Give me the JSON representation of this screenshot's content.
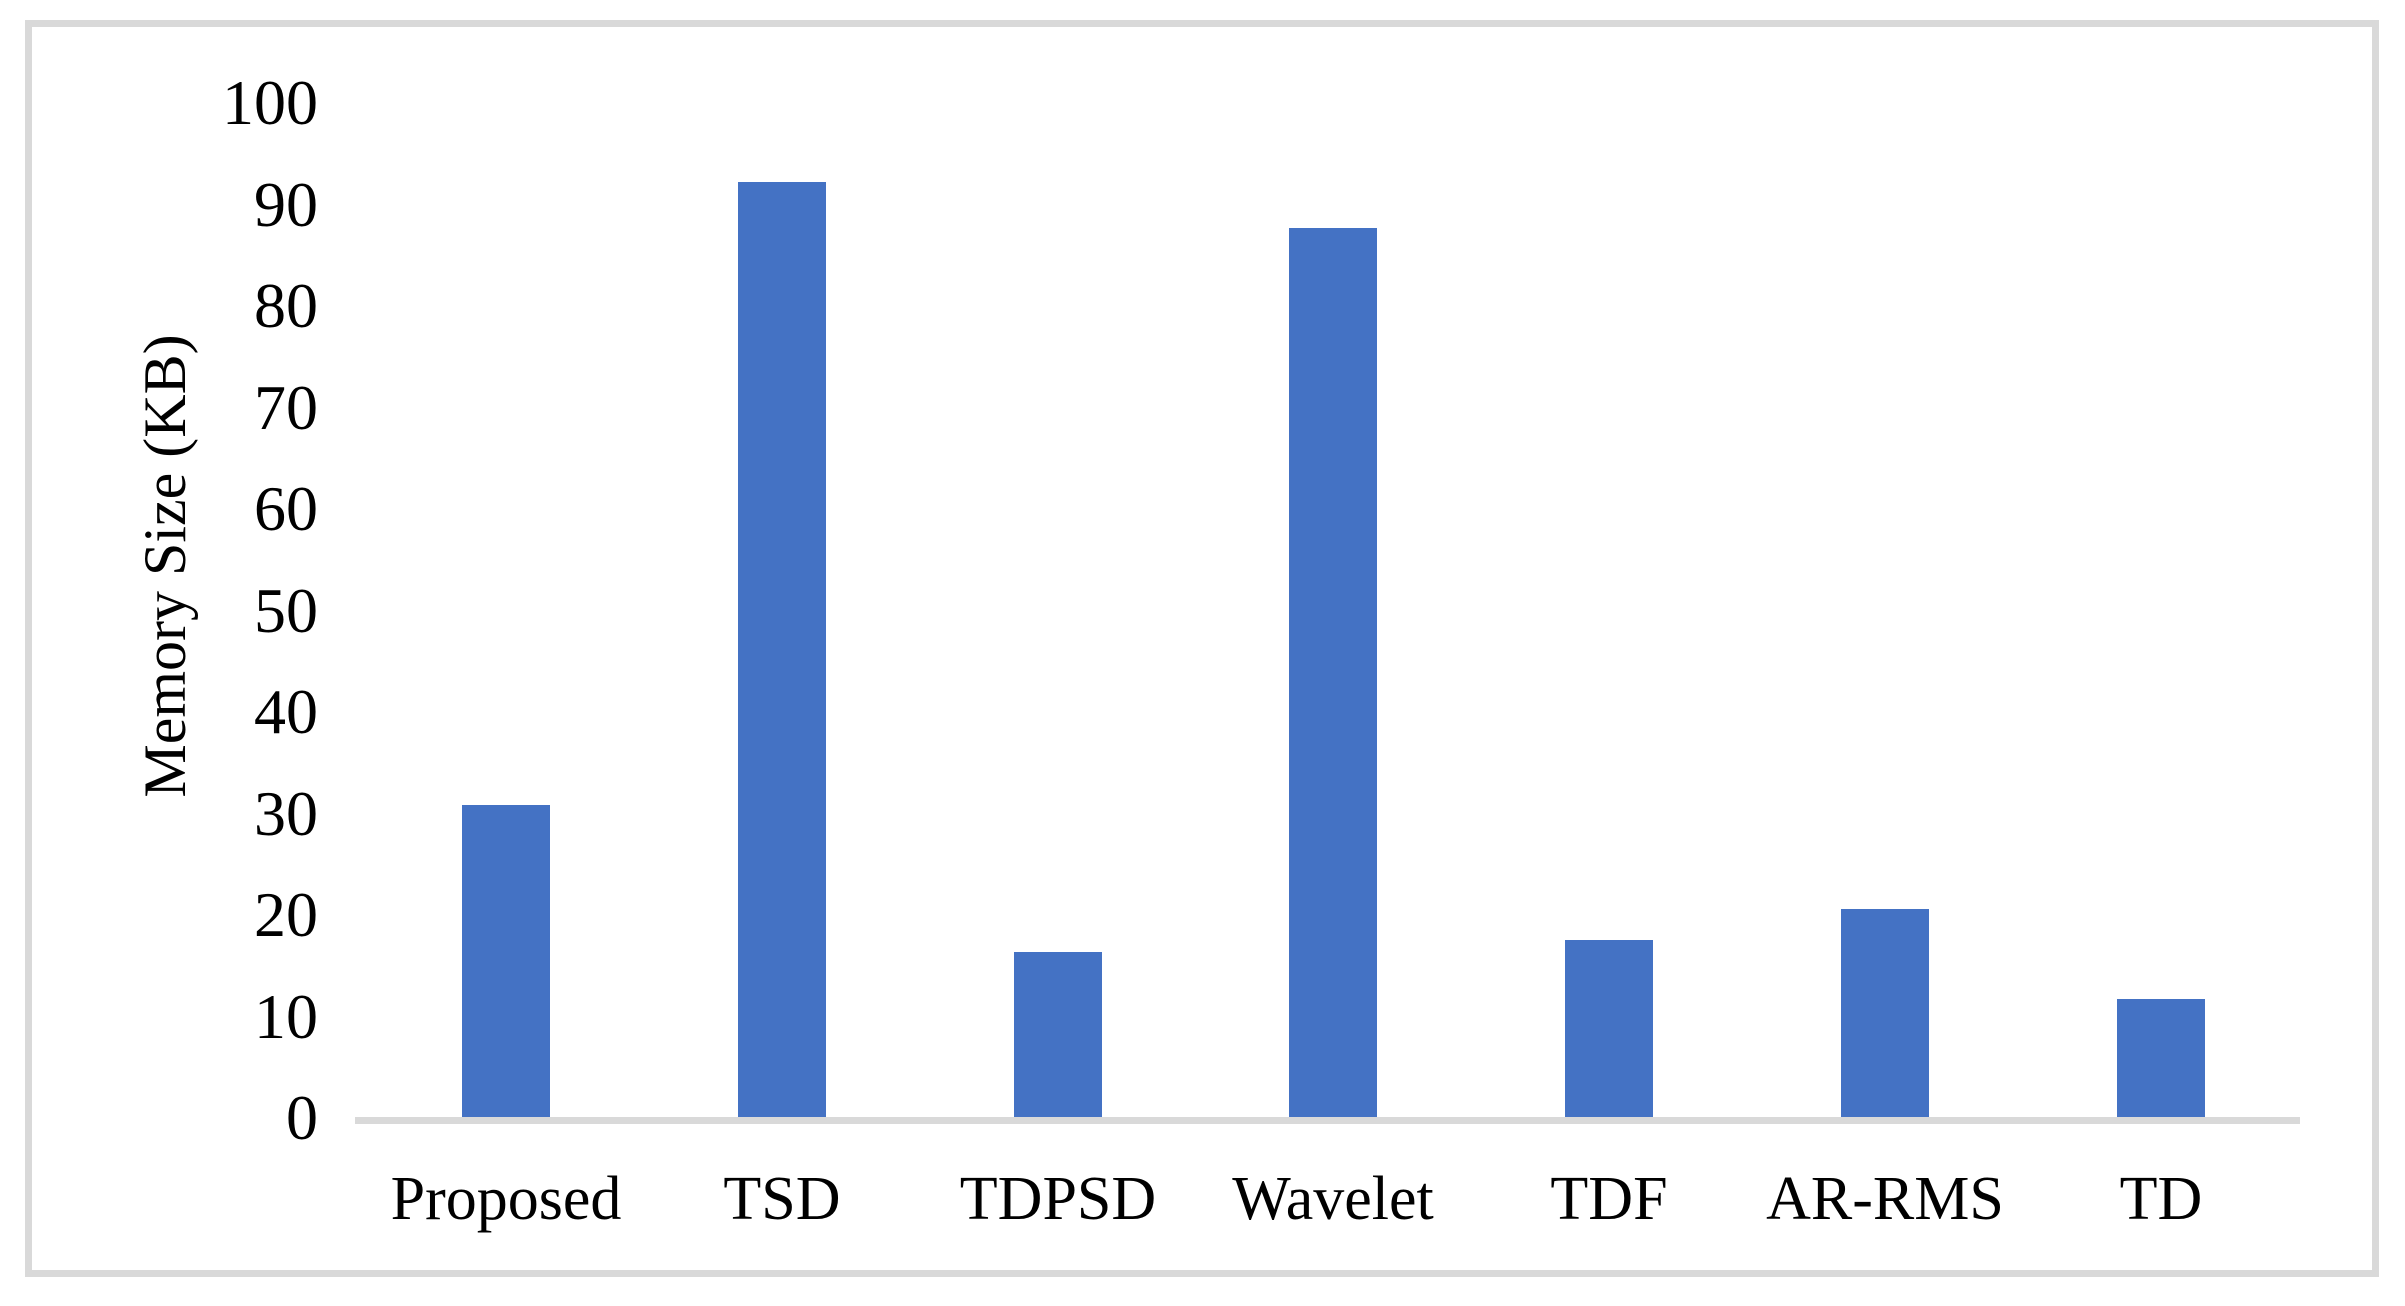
{
  "figure": {
    "background_color": "#ffffff",
    "border_color": "#d9d9d9",
    "text_color": "#000000"
  },
  "chart_data": {
    "type": "bar",
    "title": "",
    "xlabel": "",
    "ylabel": "Memory Size (KB)",
    "categories": [
      "Proposed",
      "TSD",
      "TDPSD",
      "Wavelet",
      "TDF",
      "AR-RMS",
      "TD"
    ],
    "series": [
      {
        "name": "Memory Size (KB)",
        "values": [
          30.7,
          92.1,
          16.3,
          87.6,
          17.4,
          20.5,
          11.6
        ]
      }
    ],
    "ylim": [
      0,
      100
    ],
    "ytick_interval": 10,
    "yticks": [
      0,
      10,
      20,
      30,
      40,
      50,
      60,
      70,
      80,
      90,
      100
    ],
    "grid": false,
    "legend_position": "none",
    "bar_color": "#4472C4",
    "axis_line_color": "#d9d9d9"
  }
}
